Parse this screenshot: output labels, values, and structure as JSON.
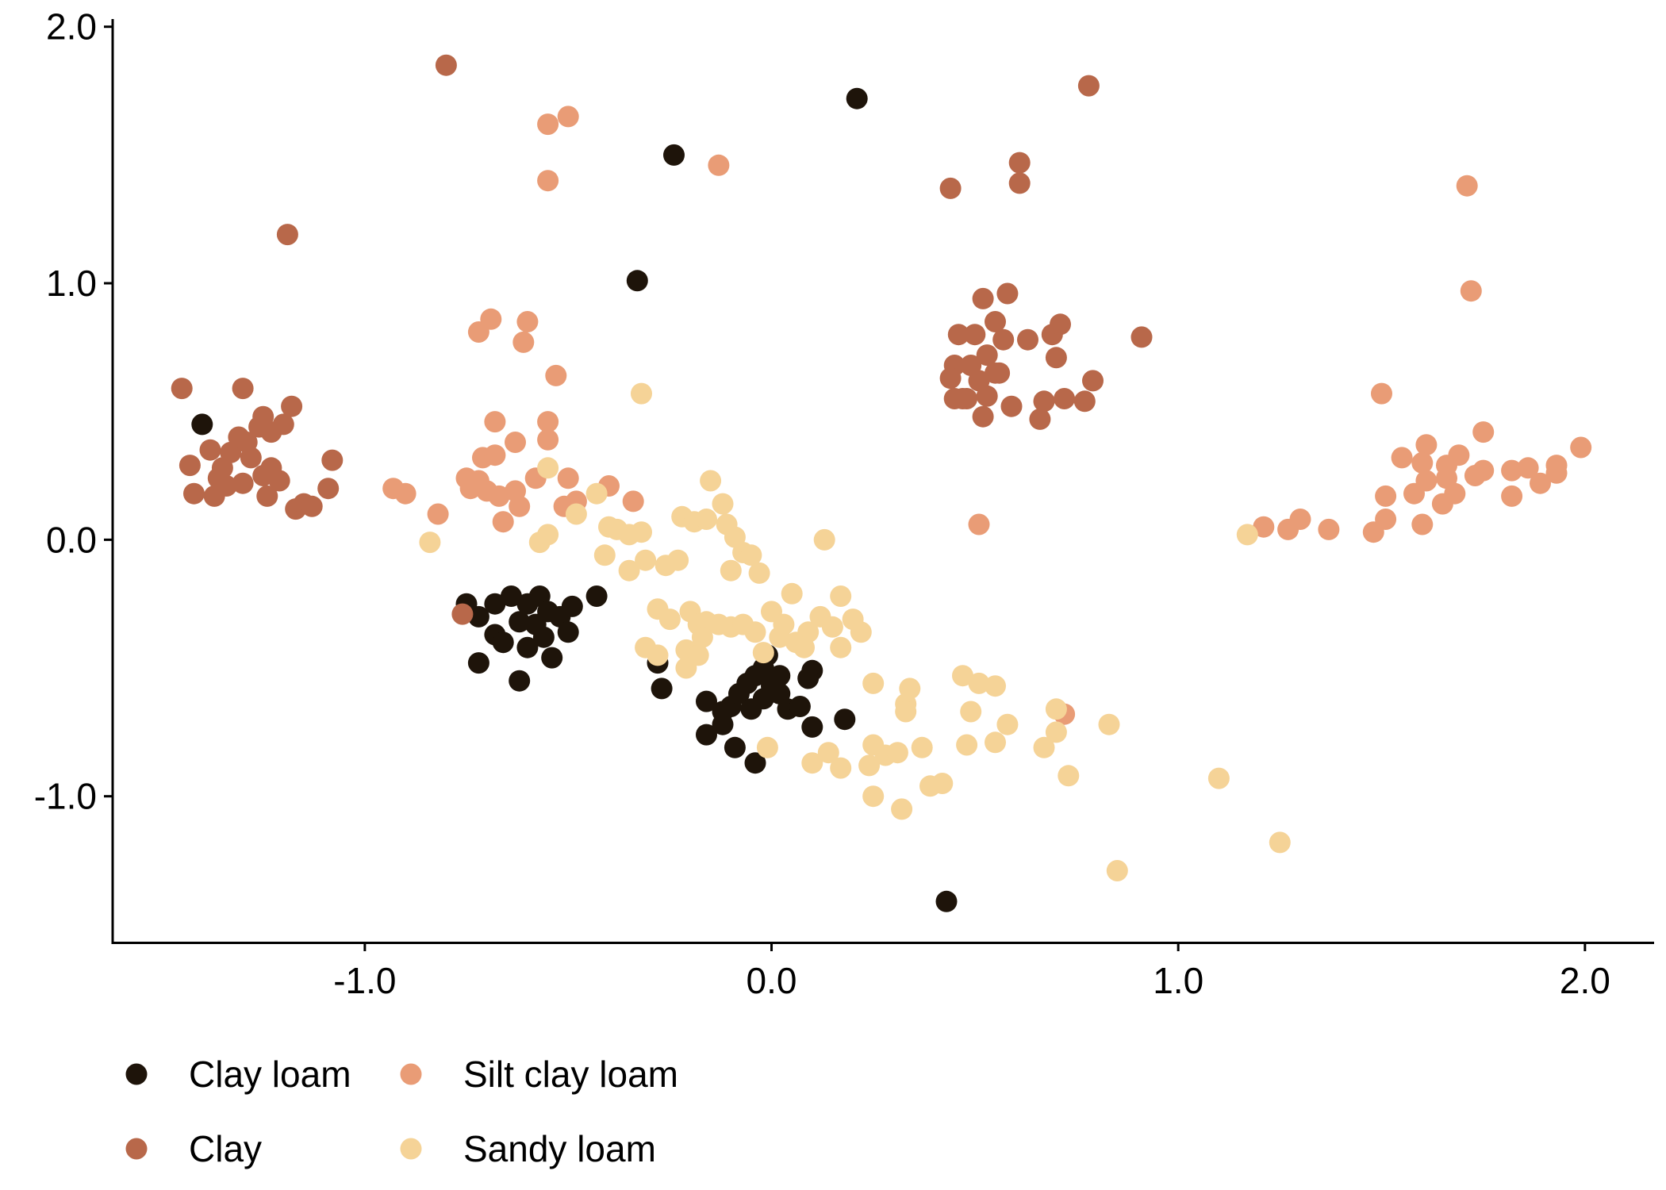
{
  "chart_data": {
    "type": "scatter",
    "title": "",
    "xlabel": "",
    "ylabel": "",
    "xlim": [
      -1.62,
      2.17
    ],
    "ylim": [
      -1.57,
      2.03
    ],
    "x_ticks": [
      -1.0,
      0.0,
      1.0,
      2.0
    ],
    "x_tick_labels": [
      "-1.0",
      "0.0",
      "1.0",
      "2.0"
    ],
    "y_ticks": [
      -1.0,
      0.0,
      1.0,
      2.0
    ],
    "y_tick_labels": [
      "-1.0",
      "0.0",
      "1.0",
      "2.0"
    ],
    "grid": false,
    "legend_position": "bottom-left",
    "series": [
      {
        "name": "Clay loam",
        "color": "#1e140a",
        "points": [
          [
            -1.4,
            0.45
          ],
          [
            -0.33,
            1.01
          ],
          [
            -0.24,
            1.5
          ],
          [
            0.21,
            1.72
          ],
          [
            0.43,
            -1.41
          ],
          [
            -0.75,
            -0.25
          ],
          [
            -0.72,
            -0.3
          ],
          [
            -0.68,
            -0.25
          ],
          [
            -0.64,
            -0.22
          ],
          [
            -0.6,
            -0.25
          ],
          [
            -0.57,
            -0.22
          ],
          [
            -0.62,
            -0.32
          ],
          [
            -0.58,
            -0.33
          ],
          [
            -0.55,
            -0.28
          ],
          [
            -0.52,
            -0.3
          ],
          [
            -0.49,
            -0.26
          ],
          [
            -0.43,
            -0.22
          ],
          [
            -0.68,
            -0.37
          ],
          [
            -0.66,
            -0.4
          ],
          [
            -0.6,
            -0.42
          ],
          [
            -0.56,
            -0.38
          ],
          [
            -0.54,
            -0.46
          ],
          [
            -0.5,
            -0.36
          ],
          [
            -0.72,
            -0.48
          ],
          [
            -0.62,
            -0.55
          ],
          [
            -0.28,
            -0.48
          ],
          [
            -0.27,
            -0.58
          ],
          [
            -0.16,
            -0.63
          ],
          [
            -0.16,
            -0.76
          ],
          [
            -0.12,
            -0.72
          ],
          [
            -0.1,
            -0.65
          ],
          [
            -0.08,
            -0.6
          ],
          [
            -0.06,
            -0.56
          ],
          [
            -0.04,
            -0.53
          ],
          [
            -0.02,
            -0.5
          ],
          [
            0.0,
            -0.57
          ],
          [
            -0.05,
            -0.66
          ],
          [
            -0.02,
            -0.62
          ],
          [
            0.02,
            -0.6
          ],
          [
            0.04,
            -0.66
          ],
          [
            0.02,
            -0.53
          ],
          [
            0.07,
            -0.65
          ],
          [
            0.1,
            -0.51
          ],
          [
            0.09,
            -0.54
          ],
          [
            -0.01,
            -0.45
          ],
          [
            -0.09,
            -0.81
          ],
          [
            -0.04,
            -0.87
          ],
          [
            0.1,
            -0.73
          ],
          [
            0.18,
            -0.7
          ],
          [
            -0.12,
            -0.67
          ]
        ]
      },
      {
        "name": "Clay",
        "color": "#b8684a",
        "points": [
          [
            -0.8,
            1.85
          ],
          [
            -1.19,
            1.19
          ],
          [
            0.78,
            1.77
          ],
          [
            0.61,
            1.47
          ],
          [
            0.61,
            1.39
          ],
          [
            0.44,
            1.37
          ],
          [
            0.91,
            0.79
          ],
          [
            -1.45,
            0.59
          ],
          [
            -1.3,
            0.59
          ],
          [
            -1.43,
            0.29
          ],
          [
            -1.42,
            0.18
          ],
          [
            -1.38,
            0.35
          ],
          [
            -1.36,
            0.24
          ],
          [
            -1.35,
            0.28
          ],
          [
            -1.33,
            0.34
          ],
          [
            -1.31,
            0.4
          ],
          [
            -1.29,
            0.38
          ],
          [
            -1.28,
            0.32
          ],
          [
            -1.26,
            0.44
          ],
          [
            -1.25,
            0.48
          ],
          [
            -1.23,
            0.42
          ],
          [
            -1.2,
            0.45
          ],
          [
            -1.18,
            0.52
          ],
          [
            -1.25,
            0.25
          ],
          [
            -1.23,
            0.28
          ],
          [
            -1.21,
            0.23
          ],
          [
            -1.24,
            0.17
          ],
          [
            -1.17,
            0.12
          ],
          [
            -1.15,
            0.14
          ],
          [
            -1.13,
            0.13
          ],
          [
            -1.09,
            0.2
          ],
          [
            -1.08,
            0.31
          ],
          [
            -1.37,
            0.17
          ],
          [
            -1.3,
            0.22
          ],
          [
            -1.34,
            0.21
          ],
          [
            0.46,
            0.8
          ],
          [
            0.5,
            0.8
          ],
          [
            0.52,
            0.94
          ],
          [
            0.55,
            0.85
          ],
          [
            0.58,
            0.96
          ],
          [
            0.45,
            0.68
          ],
          [
            0.49,
            0.68
          ],
          [
            0.51,
            0.62
          ],
          [
            0.53,
            0.72
          ],
          [
            0.55,
            0.65
          ],
          [
            0.53,
            0.56
          ],
          [
            0.48,
            0.55
          ],
          [
            0.45,
            0.55
          ],
          [
            0.44,
            0.63
          ],
          [
            0.57,
            0.78
          ],
          [
            0.63,
            0.78
          ],
          [
            0.69,
            0.8
          ],
          [
            0.71,
            0.84
          ],
          [
            0.7,
            0.71
          ],
          [
            0.59,
            0.52
          ],
          [
            0.66,
            0.47
          ],
          [
            0.67,
            0.54
          ],
          [
            0.72,
            0.55
          ],
          [
            0.77,
            0.54
          ],
          [
            0.79,
            0.62
          ],
          [
            0.52,
            0.48
          ],
          [
            0.56,
            0.65
          ],
          [
            0.47,
            0.55
          ],
          [
            -0.76,
            -0.29
          ]
        ]
      },
      {
        "name": "Silt clay loam",
        "color": "#e99c76",
        "points": [
          [
            -0.55,
            1.62
          ],
          [
            -0.5,
            1.65
          ],
          [
            -0.55,
            1.4
          ],
          [
            -0.13,
            1.46
          ],
          [
            1.71,
            1.38
          ],
          [
            1.72,
            0.97
          ],
          [
            -0.72,
            0.81
          ],
          [
            -0.69,
            0.86
          ],
          [
            -0.6,
            0.85
          ],
          [
            -0.61,
            0.77
          ],
          [
            -0.53,
            0.64
          ],
          [
            -0.68,
            0.46
          ],
          [
            -0.55,
            0.46
          ],
          [
            -0.55,
            0.39
          ],
          [
            -0.63,
            0.38
          ],
          [
            -0.71,
            0.32
          ],
          [
            -0.68,
            0.33
          ],
          [
            -0.75,
            0.24
          ],
          [
            -0.72,
            0.23
          ],
          [
            -0.74,
            0.2
          ],
          [
            -0.7,
            0.19
          ],
          [
            -0.67,
            0.17
          ],
          [
            -0.63,
            0.19
          ],
          [
            -0.58,
            0.24
          ],
          [
            -0.5,
            0.24
          ],
          [
            -0.62,
            0.13
          ],
          [
            -0.51,
            0.13
          ],
          [
            -0.48,
            0.15
          ],
          [
            -0.4,
            0.21
          ],
          [
            -0.34,
            0.15
          ],
          [
            -0.66,
            0.07
          ],
          [
            -0.93,
            0.2
          ],
          [
            -0.9,
            0.18
          ],
          [
            -0.82,
            0.1
          ],
          [
            0.51,
            0.06
          ],
          [
            0.72,
            -0.68
          ],
          [
            1.5,
            0.57
          ],
          [
            1.61,
            0.37
          ],
          [
            1.69,
            0.33
          ],
          [
            1.75,
            0.42
          ],
          [
            1.55,
            0.32
          ],
          [
            1.6,
            0.3
          ],
          [
            1.61,
            0.23
          ],
          [
            1.58,
            0.18
          ],
          [
            1.66,
            0.24
          ],
          [
            1.66,
            0.29
          ],
          [
            1.68,
            0.18
          ],
          [
            1.65,
            0.14
          ],
          [
            1.73,
            0.25
          ],
          [
            1.75,
            0.27
          ],
          [
            1.82,
            0.27
          ],
          [
            1.86,
            0.28
          ],
          [
            1.89,
            0.22
          ],
          [
            1.93,
            0.29
          ],
          [
            1.93,
            0.26
          ],
          [
            1.99,
            0.36
          ],
          [
            1.82,
            0.17
          ],
          [
            1.51,
            0.17
          ],
          [
            1.51,
            0.08
          ],
          [
            1.6,
            0.06
          ],
          [
            1.48,
            0.03
          ],
          [
            1.21,
            0.05
          ],
          [
            1.27,
            0.04
          ],
          [
            1.3,
            0.08
          ],
          [
            1.37,
            0.04
          ]
        ]
      },
      {
        "name": "Sandy loam",
        "color": "#f5d397",
        "points": [
          [
            -0.32,
            0.57
          ],
          [
            -0.55,
            0.28
          ],
          [
            -0.43,
            0.18
          ],
          [
            -0.48,
            0.1
          ],
          [
            -0.84,
            -0.01
          ],
          [
            -0.57,
            -0.01
          ],
          [
            -0.55,
            0.02
          ],
          [
            -0.4,
            0.05
          ],
          [
            -0.38,
            0.04
          ],
          [
            -0.35,
            0.02
          ],
          [
            -0.32,
            0.03
          ],
          [
            -0.41,
            -0.06
          ],
          [
            -0.35,
            -0.12
          ],
          [
            -0.31,
            -0.08
          ],
          [
            -0.26,
            -0.1
          ],
          [
            -0.23,
            -0.08
          ],
          [
            -0.22,
            0.09
          ],
          [
            -0.19,
            0.07
          ],
          [
            -0.16,
            0.08
          ],
          [
            -0.15,
            0.23
          ],
          [
            -0.12,
            0.14
          ],
          [
            -0.11,
            0.06
          ],
          [
            -0.09,
            0.01
          ],
          [
            -0.07,
            -0.05
          ],
          [
            -0.05,
            -0.06
          ],
          [
            -0.1,
            -0.12
          ],
          [
            -0.03,
            -0.13
          ],
          [
            0.13,
            0.0
          ],
          [
            -0.28,
            -0.27
          ],
          [
            -0.25,
            -0.31
          ],
          [
            -0.2,
            -0.28
          ],
          [
            -0.18,
            -0.33
          ],
          [
            -0.16,
            -0.32
          ],
          [
            -0.13,
            -0.33
          ],
          [
            -0.1,
            -0.34
          ],
          [
            -0.07,
            -0.33
          ],
          [
            -0.04,
            -0.36
          ],
          [
            0.0,
            -0.28
          ],
          [
            0.03,
            -0.33
          ],
          [
            0.05,
            -0.21
          ],
          [
            0.02,
            -0.38
          ],
          [
            0.06,
            -0.4
          ],
          [
            0.09,
            -0.36
          ],
          [
            0.12,
            -0.3
          ],
          [
            0.15,
            -0.34
          ],
          [
            0.17,
            -0.22
          ],
          [
            0.2,
            -0.31
          ],
          [
            0.22,
            -0.36
          ],
          [
            0.17,
            -0.42
          ],
          [
            -0.31,
            -0.42
          ],
          [
            -0.28,
            -0.45
          ],
          [
            -0.21,
            -0.43
          ],
          [
            -0.18,
            -0.45
          ],
          [
            -0.21,
            -0.5
          ],
          [
            -0.17,
            -0.38
          ],
          [
            -0.02,
            -0.44
          ],
          [
            0.08,
            -0.42
          ],
          [
            0.25,
            -0.56
          ],
          [
            0.34,
            -0.58
          ],
          [
            0.33,
            -0.64
          ],
          [
            0.33,
            -0.67
          ],
          [
            0.47,
            -0.53
          ],
          [
            0.51,
            -0.56
          ],
          [
            0.55,
            -0.57
          ],
          [
            0.49,
            -0.67
          ],
          [
            0.58,
            -0.72
          ],
          [
            0.7,
            -0.66
          ],
          [
            0.7,
            -0.75
          ],
          [
            0.73,
            -0.92
          ],
          [
            0.67,
            -0.81
          ],
          [
            0.83,
            -0.72
          ],
          [
            0.48,
            -0.8
          ],
          [
            0.55,
            -0.79
          ],
          [
            0.25,
            -0.8
          ],
          [
            0.28,
            -0.84
          ],
          [
            0.24,
            -0.88
          ],
          [
            0.31,
            -0.83
          ],
          [
            0.37,
            -0.81
          ],
          [
            0.1,
            -0.87
          ],
          [
            0.14,
            -0.83
          ],
          [
            0.17,
            -0.89
          ],
          [
            0.25,
            -1.0
          ],
          [
            0.32,
            -1.05
          ],
          [
            0.39,
            -0.96
          ],
          [
            0.42,
            -0.95
          ],
          [
            -0.01,
            -0.81
          ],
          [
            1.1,
            -0.93
          ],
          [
            1.25,
            -1.18
          ],
          [
            0.85,
            -1.29
          ],
          [
            1.17,
            0.02
          ]
        ]
      }
    ]
  }
}
